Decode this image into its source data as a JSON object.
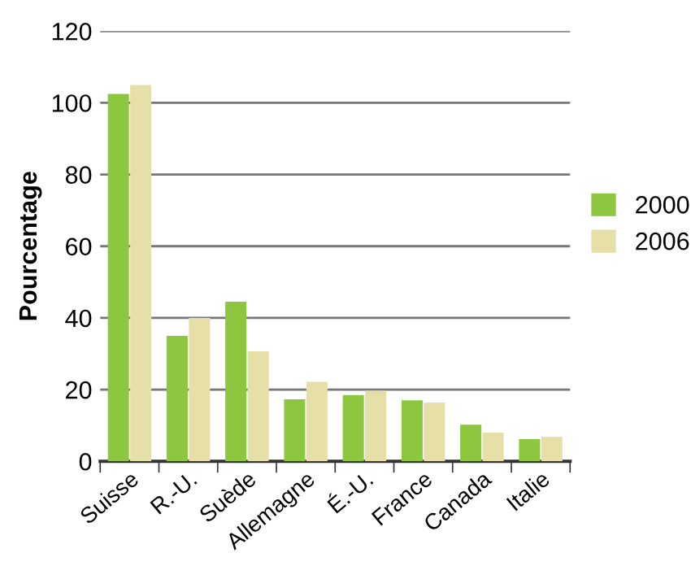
{
  "chart_data": {
    "type": "bar",
    "ylabel": "Pourcentage",
    "categories": [
      "Suisse",
      "R.-U.",
      "Suède",
      "Allemagne",
      "É.-U.",
      "France",
      "Canada",
      "Italie"
    ],
    "series": [
      {
        "name": "2000",
        "color": "#8dc63f",
        "values": [
          102.5,
          35,
          44.5,
          17.3,
          18.5,
          17,
          10.2,
          6.2
        ]
      },
      {
        "name": "2006",
        "color": "#e6e0a8",
        "values": [
          105,
          40,
          30.7,
          22.2,
          19.7,
          16.4,
          8,
          6.8
        ]
      }
    ],
    "ylim": [
      0,
      120
    ],
    "yticks": [
      0,
      20,
      40,
      60,
      80,
      100,
      120
    ],
    "grid": "y",
    "legend": "right"
  }
}
